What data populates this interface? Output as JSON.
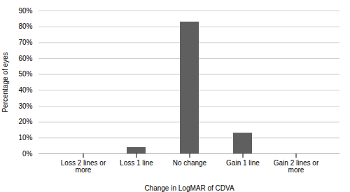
{
  "chart_data": {
    "type": "bar",
    "categories": [
      "Loss 2 lines or more",
      "Loss 1 line",
      "No change",
      "Gain 1 line",
      "Gain 2 lines or more"
    ],
    "values": [
      0,
      4,
      83,
      13,
      0
    ],
    "color": "#5f5f5f",
    "xlabel": "Change in LogMAR of CDVA",
    "ylabel": "Percentage of eyes",
    "ylim": [
      0,
      90
    ],
    "yticks": [
      {
        "value": 0,
        "label": "0%"
      },
      {
        "value": 10,
        "label": "10%"
      },
      {
        "value": 20,
        "label": "20%"
      },
      {
        "value": 30,
        "label": "30%"
      },
      {
        "value": 40,
        "label": "40%"
      },
      {
        "value": 50,
        "label": "50%"
      },
      {
        "value": 60,
        "label": "60%"
      },
      {
        "value": 70,
        "label": "70%"
      },
      {
        "value": 80,
        "label": "80%"
      },
      {
        "value": 90,
        "label": "90%"
      }
    ],
    "grid": true
  }
}
